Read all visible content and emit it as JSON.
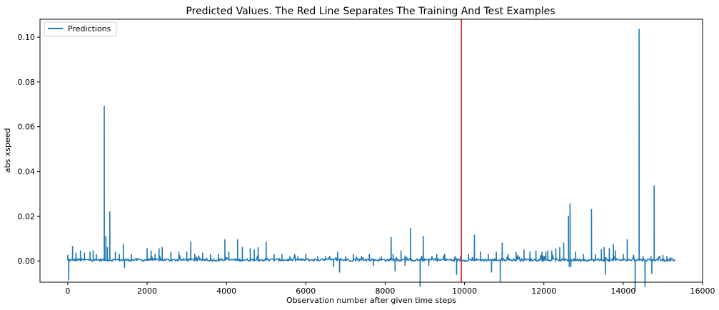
{
  "chart_data": {
    "type": "line",
    "title": "Predicted Values. The Red Line Separates The Training And Test Examples",
    "xlabel": "Observation number after given time steps",
    "ylabel": "abs xspeed",
    "xlim": [
      -700,
      16000
    ],
    "ylim": [
      -0.0095,
      0.108
    ],
    "x_ticks": [
      0,
      2000,
      4000,
      6000,
      8000,
      10000,
      12000,
      14000,
      16000
    ],
    "x_tick_labels": [
      "0",
      "2000",
      "4000",
      "6000",
      "8000",
      "10000",
      "12000",
      "14000",
      "16000"
    ],
    "y_ticks": [
      0.0,
      0.02,
      0.04,
      0.06,
      0.08,
      0.1
    ],
    "y_tick_labels": [
      "0.00",
      "0.02",
      "0.04",
      "0.06",
      "0.08",
      "0.10"
    ],
    "legend": {
      "position": "upper-left",
      "entries": [
        "Predictions"
      ]
    },
    "grid": false,
    "split_line": {
      "x": 9920,
      "color": "#d62728"
    },
    "series": [
      {
        "name": "Predictions",
        "color": "#1f77b4",
        "x_start": 0,
        "x_end": 15300,
        "baseline": 0.0004,
        "spikes": [
          [
            0,
            0.0025
          ],
          [
            25,
            -0.0085
          ],
          [
            120,
            0.0065
          ],
          [
            210,
            0.0035
          ],
          [
            320,
            0.0045
          ],
          [
            420,
            0.0035
          ],
          [
            560,
            0.004
          ],
          [
            640,
            0.0045
          ],
          [
            720,
            0.003
          ],
          [
            920,
            0.069
          ],
          [
            960,
            0.011
          ],
          [
            1000,
            0.006
          ],
          [
            1060,
            0.022
          ],
          [
            1200,
            0.004
          ],
          [
            1300,
            0.003
          ],
          [
            1400,
            0.0075
          ],
          [
            1430,
            -0.003
          ],
          [
            1600,
            0.003
          ],
          [
            2000,
            0.0055
          ],
          [
            2100,
            0.0045
          ],
          [
            2200,
            0.003
          ],
          [
            2300,
            0.0055
          ],
          [
            2380,
            0.006
          ],
          [
            2600,
            0.004
          ],
          [
            2800,
            0.004
          ],
          [
            3000,
            0.004
          ],
          [
            3100,
            0.0085
          ],
          [
            3200,
            0.003
          ],
          [
            3400,
            0.0035
          ],
          [
            3600,
            0.003
          ],
          [
            3800,
            0.003
          ],
          [
            3960,
            0.0095
          ],
          [
            4060,
            0.004
          ],
          [
            4280,
            0.0095
          ],
          [
            4400,
            0.006
          ],
          [
            4600,
            0.0055
          ],
          [
            4700,
            0.005
          ],
          [
            4800,
            0.006
          ],
          [
            5000,
            0.0085
          ],
          [
            5200,
            0.003
          ],
          [
            5400,
            0.003
          ],
          [
            5600,
            0.002
          ],
          [
            5800,
            0.002
          ],
          [
            6000,
            0.003
          ],
          [
            6300,
            0.002
          ],
          [
            6500,
            0.002
          ],
          [
            6700,
            -0.0025
          ],
          [
            6800,
            0.004
          ],
          [
            6850,
            -0.005
          ],
          [
            7000,
            0.002
          ],
          [
            7200,
            0.003
          ],
          [
            7400,
            0.002
          ],
          [
            7600,
            0.003
          ],
          [
            7700,
            -0.002
          ],
          [
            7900,
            0.002
          ],
          [
            8150,
            0.0105
          ],
          [
            8200,
            0.003
          ],
          [
            8250,
            -0.0045
          ],
          [
            8400,
            0.0045
          ],
          [
            8500,
            -0.002
          ],
          [
            8640,
            0.0145
          ],
          [
            8880,
            -0.0115
          ],
          [
            8960,
            0.011
          ],
          [
            9100,
            -0.002
          ],
          [
            9300,
            0.003
          ],
          [
            9500,
            0.003
          ],
          [
            9800,
            -0.006
          ],
          [
            9900,
            0.002
          ],
          [
            10100,
            0.003
          ],
          [
            10250,
            0.0115
          ],
          [
            10400,
            0.004
          ],
          [
            10600,
            0.003
          ],
          [
            10680,
            -0.005
          ],
          [
            10800,
            0.004
          ],
          [
            10900,
            -0.0095
          ],
          [
            10950,
            0.008
          ],
          [
            11100,
            0.003
          ],
          [
            11300,
            0.004
          ],
          [
            11500,
            0.005
          ],
          [
            11650,
            0.004
          ],
          [
            11800,
            0.0045
          ],
          [
            11950,
            0.004
          ],
          [
            12050,
            0.004
          ],
          [
            12100,
            0.0045
          ],
          [
            12200,
            0.0045
          ],
          [
            12300,
            0.0055
          ],
          [
            12400,
            0.006
          ],
          [
            12500,
            0.008
          ],
          [
            12620,
            0.02
          ],
          [
            12640,
            -0.0025
          ],
          [
            12660,
            0.0255
          ],
          [
            12680,
            -0.0025
          ],
          [
            12800,
            0.004
          ],
          [
            13000,
            0.003
          ],
          [
            13200,
            0.023
          ],
          [
            13300,
            0.003
          ],
          [
            13450,
            0.005
          ],
          [
            13520,
            0.006
          ],
          [
            13550,
            -0.006
          ],
          [
            13650,
            0.0055
          ],
          [
            13750,
            0.0075
          ],
          [
            13800,
            0.0045
          ],
          [
            14000,
            0.003
          ],
          [
            14100,
            0.0095
          ],
          [
            14300,
            -0.0135
          ],
          [
            14400,
            0.1035
          ],
          [
            14500,
            0.002
          ],
          [
            14550,
            -0.0115
          ],
          [
            14700,
            0.002
          ],
          [
            14720,
            -0.0055
          ],
          [
            14780,
            0.0335
          ],
          [
            15000,
            0.0025
          ],
          [
            15100,
            0.002
          ],
          [
            15200,
            0.0015
          ],
          [
            15300,
            0.0005
          ]
        ]
      }
    ]
  }
}
